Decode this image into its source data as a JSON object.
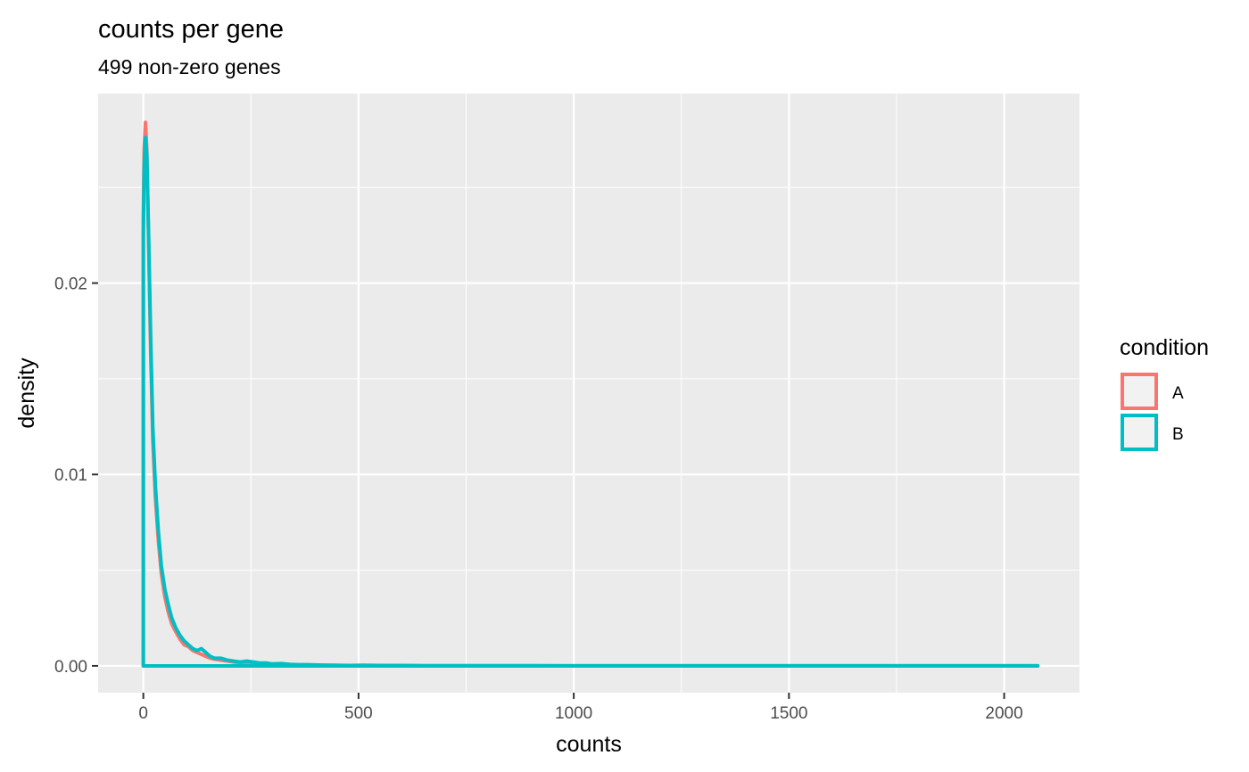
{
  "chart_data": {
    "type": "line",
    "title": "counts per gene",
    "subtitle": "499 non-zero genes",
    "xlabel": "counts",
    "ylabel": "density",
    "xlim": [
      -105,
      2175
    ],
    "ylim": [
      -0.0014,
      0.0299
    ],
    "x_ticks": [
      0,
      500,
      1000,
      1500,
      2000
    ],
    "x_tick_labels": [
      "0",
      "500",
      "1000",
      "1500",
      "2000"
    ],
    "x_minor_ticks": [
      250,
      750,
      1250,
      1750
    ],
    "y_ticks": [
      0,
      0.01,
      0.02
    ],
    "y_tick_labels": [
      "0.00",
      "0.01",
      "0.02"
    ],
    "y_minor_ticks": [
      0.005,
      0.015,
      0.025
    ],
    "grid": true,
    "panel_background": "#ebebeb",
    "legend": {
      "title": "condition",
      "position": "right"
    },
    "series": [
      {
        "name": "A",
        "color": "#f8766d",
        "x": [
          0,
          0,
          2,
          5,
          8,
          12,
          17,
          22,
          28,
          35,
          42,
          50,
          58,
          66,
          75,
          85,
          95,
          105,
          115,
          125,
          135,
          145,
          155,
          165,
          180,
          195,
          210,
          225,
          240,
          255,
          270,
          285,
          300,
          320,
          340,
          360,
          380,
          400,
          420,
          450,
          480,
          510,
          550,
          600,
          650,
          700,
          800,
          900,
          1000,
          1100,
          1200,
          1300,
          1400,
          1500,
          1600,
          1700,
          1800,
          1900,
          2000,
          2078,
          2078,
          0
        ],
        "y": [
          0,
          0.0235,
          0.027,
          0.0284,
          0.027,
          0.0225,
          0.0165,
          0.0118,
          0.0088,
          0.0065,
          0.0048,
          0.0036,
          0.0028,
          0.0022,
          0.0018,
          0.0014,
          0.0011,
          0.001,
          0.0008,
          0.0007,
          0.0006,
          0.0005,
          0.0004,
          0.00035,
          0.0003,
          0.00025,
          0.0002,
          0.00017,
          0.00015,
          0.00012,
          0.0001,
          0.00015,
          8e-05,
          6e-05,
          5e-05,
          4e-05,
          3e-05,
          3e-05,
          2e-05,
          2e-05,
          1e-05,
          1e-05,
          1e-05,
          1e-05,
          5e-06,
          5e-06,
          4e-06,
          3e-06,
          3e-06,
          2e-06,
          2e-06,
          2e-06,
          2e-06,
          2e-06,
          2e-06,
          2e-06,
          1e-06,
          1e-06,
          1e-06,
          1e-06,
          0,
          0
        ]
      },
      {
        "name": "B",
        "color": "#00bfc4",
        "x": [
          0,
          0,
          2,
          5,
          8,
          12,
          17,
          22,
          28,
          35,
          42,
          50,
          58,
          66,
          75,
          85,
          95,
          105,
          115,
          125,
          135,
          145,
          155,
          165,
          180,
          195,
          210,
          225,
          240,
          255,
          270,
          285,
          300,
          320,
          340,
          360,
          380,
          400,
          420,
          450,
          480,
          510,
          550,
          600,
          650,
          700,
          800,
          900,
          1000,
          1100,
          1200,
          1300,
          1400,
          1500,
          1600,
          1700,
          1800,
          1900,
          2000,
          2078,
          2078,
          0
        ],
        "y": [
          0,
          0.0225,
          0.0262,
          0.0276,
          0.0268,
          0.0228,
          0.0172,
          0.0125,
          0.0094,
          0.007,
          0.0052,
          0.004,
          0.0032,
          0.0025,
          0.002,
          0.0016,
          0.0013,
          0.0011,
          0.0009,
          0.0008,
          0.0009,
          0.0007,
          0.0005,
          0.0004,
          0.0004,
          0.0003,
          0.00025,
          0.0002,
          0.00025,
          0.0002,
          0.00015,
          0.00015,
          0.0001,
          0.00012,
          8e-05,
          6e-05,
          6e-05,
          5e-05,
          4e-05,
          3e-05,
          2e-05,
          3e-05,
          2e-05,
          2e-05,
          1e-05,
          1e-05,
          8e-06,
          6e-06,
          5e-06,
          4e-06,
          4e-06,
          3e-06,
          3e-06,
          3e-06,
          3e-06,
          3e-06,
          3e-06,
          2e-06,
          2e-06,
          1e-06,
          0,
          0
        ]
      }
    ]
  }
}
